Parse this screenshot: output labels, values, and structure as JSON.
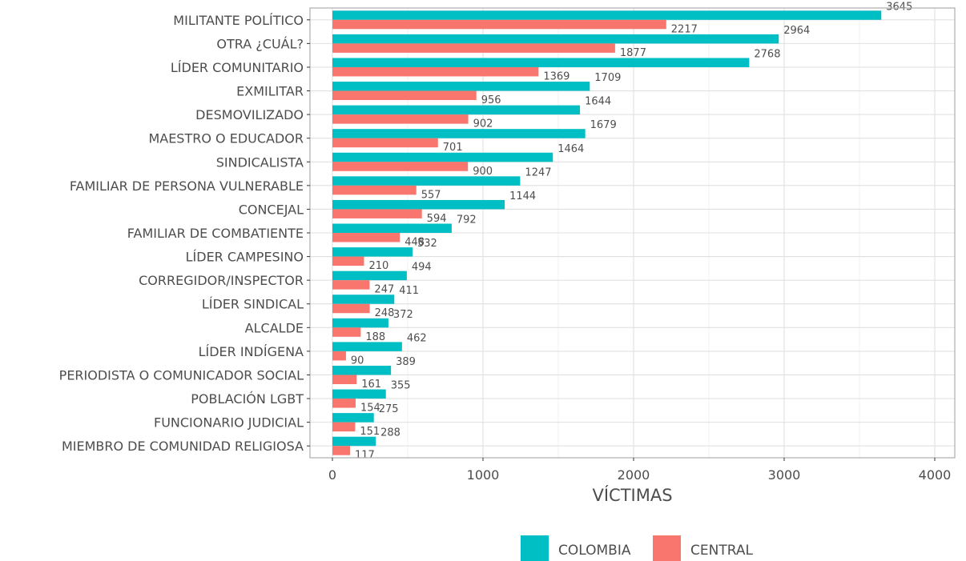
{
  "chart_data": {
    "type": "bar",
    "orientation": "horizontal",
    "categories": [
      "MILITANTE POLÍTICO",
      "OTRA ¿CUÁL?",
      "LÍDER COMUNITARIO",
      "EXMILITAR",
      "DESMOVILIZADO",
      "MAESTRO O EDUCADOR",
      "SINDICALISTA",
      "FAMILIAR DE PERSONA VULNERABLE",
      "CONCEJAL",
      "FAMILIAR DE COMBATIENTE",
      "LÍDER CAMPESINO",
      "CORREGIDOR/INSPECTOR",
      "LÍDER SINDICAL",
      "ALCALDE",
      "LÍDER INDÍGENA",
      "PERIODISTA O COMUNICADOR SOCIAL",
      "POBLACIÓN LGBT",
      "FUNCIONARIO JUDICIAL",
      "MIEMBRO DE COMUNIDAD RELIGIOSA"
    ],
    "series": [
      {
        "name": "COLOMBIA",
        "color": "#00BFC4",
        "values": [
          3645,
          2964,
          2768,
          1709,
          1644,
          1679,
          1464,
          1247,
          1144,
          792,
          532,
          494,
          411,
          372,
          462,
          389,
          355,
          275,
          288
        ]
      },
      {
        "name": "CENTRAL",
        "color": "#F8766D",
        "values": [
          2217,
          1877,
          1369,
          956,
          902,
          701,
          900,
          557,
          594,
          448,
          210,
          247,
          248,
          188,
          90,
          161,
          154,
          151,
          117
        ]
      }
    ],
    "xlabel": "VÍCTIMAS",
    "ylabel": "",
    "xlim": [
      0,
      4000
    ],
    "xticks": [
      0,
      1000,
      2000,
      3000,
      4000
    ],
    "grid": true,
    "legend_position": "bottom"
  }
}
